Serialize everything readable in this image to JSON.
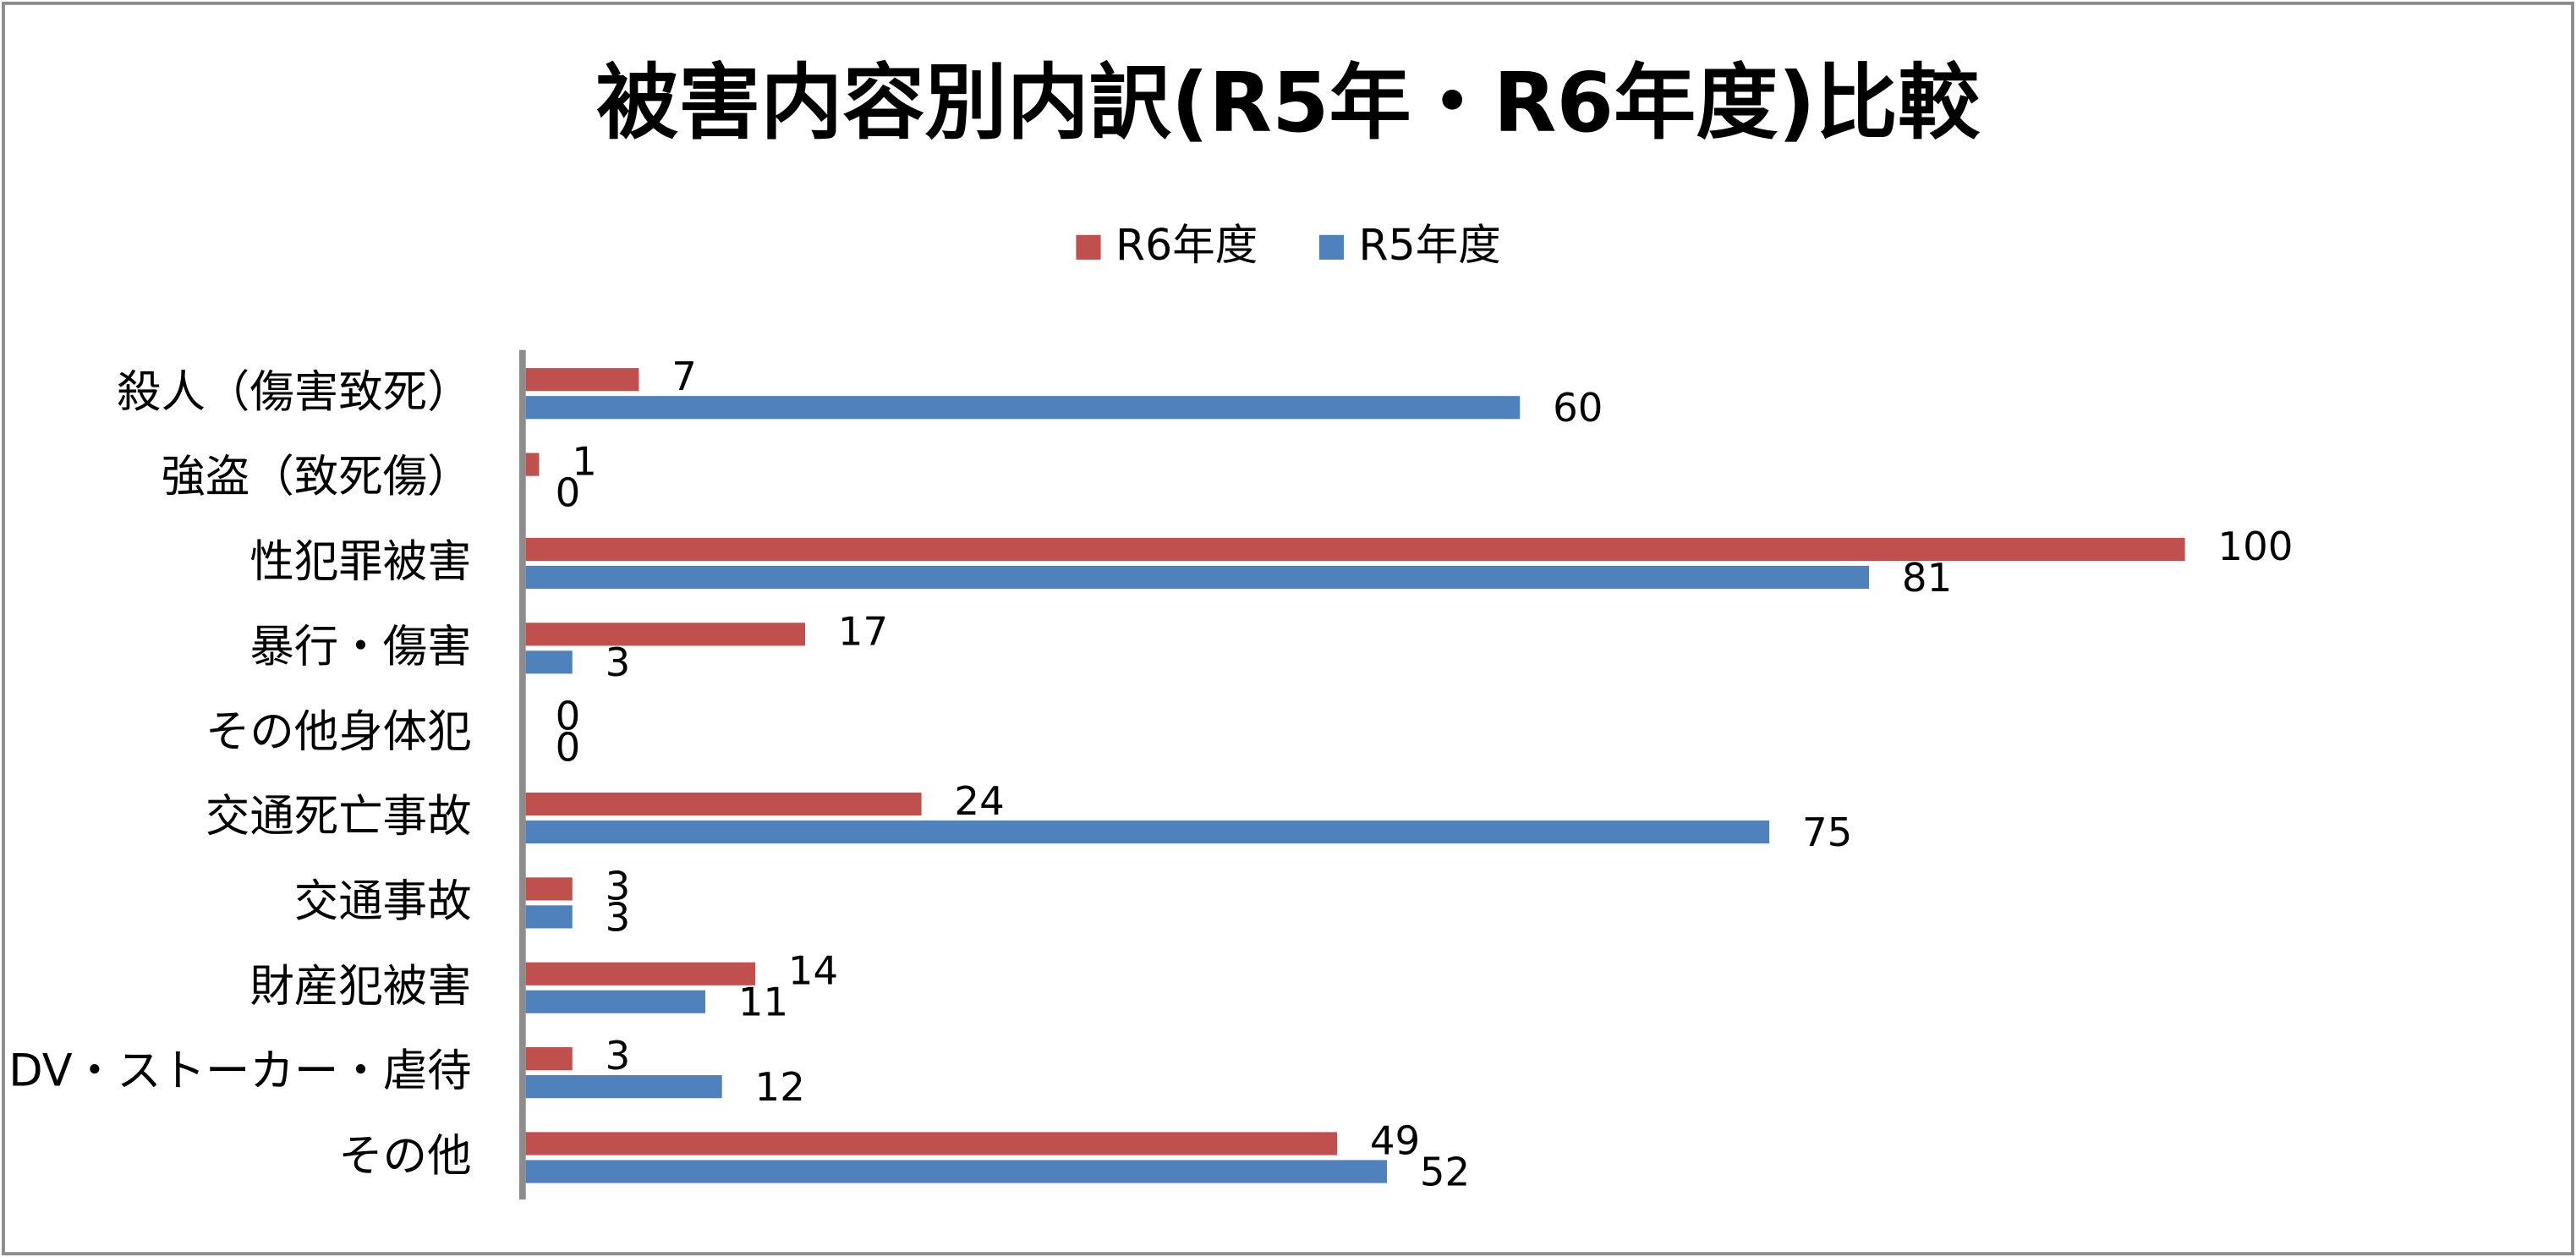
{
  "chart_data": {
    "type": "hbar",
    "title": "被害内容別内訳(R5年・R6年度)比較",
    "categories": [
      "殺人（傷害致死）",
      "強盗（致死傷）",
      "性犯罪被害",
      "暴行・傷害",
      "その他身体犯",
      "交通死亡事故",
      "交通事故",
      "財産犯被害",
      "DV・ストーカー・虐待",
      "その他"
    ],
    "series": [
      {
        "name": "R6年度",
        "color": "#c0504d",
        "values": [
          7,
          1,
          100,
          17,
          0,
          24,
          3,
          14,
          3,
          49
        ]
      },
      {
        "name": "R5年度",
        "color": "#4f81bd",
        "values": [
          60,
          0,
          81,
          3,
          0,
          75,
          3,
          11,
          12,
          52
        ]
      }
    ]
  }
}
